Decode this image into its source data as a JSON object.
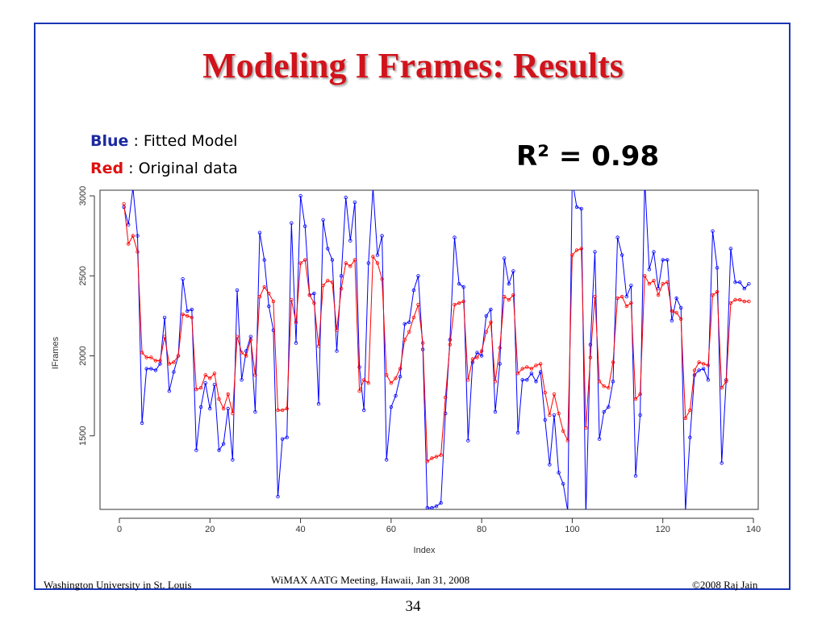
{
  "slide": {
    "title": "Modeling I Frames: Results",
    "legend_blue_key": "Blue",
    "legend_blue_text": " : Fitted Model",
    "legend_red_key": "Red",
    "legend_red_text": "  :  Original data",
    "r_squared": "R² = 0.98",
    "footer_left": "Washington University in St. Louis",
    "footer_center": "WiMAX AATG Meeting, Hawaii, Jan 31, 2008",
    "footer_right": "©2008 Raj Jain",
    "page_number": "34"
  },
  "colors": {
    "frame": "#1b36b5",
    "title": "#d2131b",
    "fitted": "#0000ff",
    "original": "#ff0000"
  },
  "chart_data": {
    "type": "line",
    "xlabel": "Index",
    "ylabel": "IFrames",
    "xlim": [
      0,
      140
    ],
    "ylim": [
      1050,
      3000
    ],
    "x_ticks": [
      0,
      20,
      40,
      60,
      80,
      100,
      120,
      140
    ],
    "y_ticks": [
      1500,
      2000,
      2500,
      3000
    ],
    "grid": false,
    "series": [
      {
        "name": "Fitted Model",
        "color": "blue",
        "values": [
          2930,
          2820,
          3050,
          2750,
          1580,
          1920,
          1920,
          1910,
          1950,
          2240,
          1780,
          1900,
          2000,
          2480,
          2280,
          2290,
          1410,
          1680,
          1830,
          1670,
          1820,
          1410,
          1450,
          1670,
          1350,
          2410,
          1850,
          2030,
          2120,
          1650,
          2770,
          2600,
          2310,
          2160,
          1120,
          1480,
          1490,
          2830,
          2080,
          3000,
          2810,
          2380,
          2390,
          1700,
          2850,
          2670,
          2600,
          2030,
          2500,
          2990,
          2720,
          2960,
          1930,
          1660,
          2580,
          3050,
          2630,
          2750,
          1350,
          1680,
          1750,
          1870,
          2200,
          2210,
          2410,
          2500,
          2040,
          1050,
          1050,
          1060,
          1080,
          1640,
          2100,
          2740,
          2450,
          2430,
          1470,
          1960,
          2020,
          2000,
          2250,
          2290,
          1650,
          1950,
          2610,
          2450,
          2530,
          1520,
          1850,
          1850,
          1890,
          1840,
          1900,
          1600,
          1320,
          1630,
          1270,
          1200,
          1030,
          3100,
          2930,
          2920,
          1000,
          2070,
          2650,
          1480,
          1650,
          1680,
          1840,
          2740,
          2630,
          2370,
          2440,
          1250,
          1630,
          3100,
          2540,
          2650,
          2420,
          2600,
          2600,
          2220,
          2360,
          2300,
          1030,
          1490,
          1880,
          1910,
          1920,
          1850,
          2780,
          2550,
          1330,
          1850,
          2670,
          2460,
          2460,
          2420,
          2450
        ]
      },
      {
        "name": "Original data",
        "color": "red",
        "values": [
          2950,
          2700,
          2750,
          2650,
          2020,
          1990,
          1990,
          1970,
          1970,
          2120,
          1950,
          1960,
          2000,
          2260,
          2250,
          2240,
          1790,
          1800,
          1880,
          1860,
          1890,
          1730,
          1670,
          1760,
          1640,
          2120,
          2020,
          2000,
          2100,
          1880,
          2370,
          2430,
          2390,
          2340,
          1660,
          1660,
          1670,
          2350,
          2210,
          2580,
          2600,
          2380,
          2330,
          2060,
          2440,
          2470,
          2460,
          2160,
          2420,
          2580,
          2560,
          2600,
          1780,
          1850,
          1830,
          2620,
          2580,
          2480,
          1880,
          1830,
          1860,
          1920,
          2100,
          2150,
          2240,
          2320,
          2080,
          1340,
          1360,
          1370,
          1380,
          1740,
          2070,
          2320,
          2330,
          2340,
          1850,
          1980,
          1990,
          2030,
          2150,
          2210,
          1840,
          2050,
          2370,
          2350,
          2380,
          1890,
          1920,
          1930,
          1920,
          1940,
          1950,
          1770,
          1630,
          1760,
          1640,
          1530,
          1470,
          2630,
          2660,
          2670,
          1550,
          1990,
          2370,
          1840,
          1810,
          1800,
          1960,
          2360,
          2370,
          2310,
          2330,
          1730,
          1760,
          2500,
          2450,
          2470,
          2380,
          2450,
          2460,
          2280,
          2270,
          2230,
          1610,
          1660,
          1910,
          1960,
          1950,
          1940,
          2380,
          2400,
          1800,
          1840,
          2330,
          2350,
          2350,
          2340,
          2340
        ]
      }
    ]
  }
}
